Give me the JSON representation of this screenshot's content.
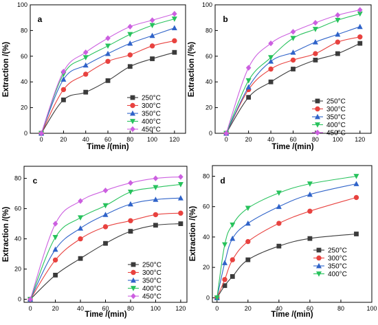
{
  "series_style": {
    "250°C": {
      "color": "#3b3b3b",
      "marker": "square"
    },
    "300°C": {
      "color": "#e8423f",
      "marker": "circle"
    },
    "350°C": {
      "color": "#2f63c9",
      "marker": "triangle-up"
    },
    "400°C": {
      "color": "#27c25c",
      "marker": "triangle-down"
    },
    "450°C": {
      "color": "#cc5fe0",
      "marker": "diamond"
    }
  },
  "chart_data": [
    {
      "type": "line",
      "panel_label": "a",
      "xlabel": "Time /(min)",
      "ylabel": "Extraction /(%)",
      "xlim": [
        -10,
        130
      ],
      "ylim": [
        0,
        100
      ],
      "xticks": [
        0,
        20,
        40,
        60,
        80,
        100,
        120
      ],
      "yticks": [
        0,
        20,
        40,
        60,
        80,
        100
      ],
      "legend_position": "lower-right",
      "x": [
        0,
        20,
        40,
        60,
        80,
        100,
        120
      ],
      "series": [
        {
          "name": "250°C",
          "values": [
            0,
            26,
            32,
            41,
            52,
            58,
            63
          ]
        },
        {
          "name": "300°C",
          "values": [
            0,
            34,
            46,
            56,
            61,
            68,
            72
          ]
        },
        {
          "name": "350°C",
          "values": [
            0,
            42,
            53,
            62,
            70,
            76,
            82
          ]
        },
        {
          "name": "400°C",
          "values": [
            0,
            46,
            59,
            68,
            77,
            84,
            89
          ]
        },
        {
          "name": "450°C",
          "values": [
            0,
            48,
            63,
            74,
            83,
            88,
            93
          ]
        }
      ]
    },
    {
      "type": "line",
      "panel_label": "b",
      "xlabel": "Time /(min)",
      "ylabel": "Extraction /(%)",
      "xlim": [
        -10,
        130
      ],
      "ylim": [
        0,
        100
      ],
      "xticks": [
        0,
        20,
        40,
        60,
        80,
        100,
        120
      ],
      "yticks": [
        0,
        20,
        40,
        60,
        80,
        100
      ],
      "legend_position": "lower-right",
      "x": [
        0,
        20,
        40,
        60,
        80,
        100,
        120
      ],
      "series": [
        {
          "name": "250°C",
          "values": [
            0,
            28,
            40,
            50,
            57,
            62,
            70
          ]
        },
        {
          "name": "300°C",
          "values": [
            0,
            34,
            50,
            57,
            62,
            71,
            75
          ]
        },
        {
          "name": "350°C",
          "values": [
            0,
            36,
            56,
            63,
            71,
            77,
            83
          ]
        },
        {
          "name": "400°C",
          "values": [
            0,
            41,
            59,
            74,
            81,
            88,
            93
          ]
        },
        {
          "name": "450°C",
          "values": [
            0,
            51,
            70,
            79,
            86,
            92,
            96
          ]
        }
      ]
    },
    {
      "type": "line",
      "panel_label": "c",
      "xlabel": "Time /(min)",
      "ylabel": "Extraction /(%)",
      "xlim": [
        -5,
        125
      ],
      "ylim": [
        -2,
        88
      ],
      "xticks": [
        0,
        20,
        40,
        60,
        80,
        100,
        120
      ],
      "yticks": [
        0,
        20,
        40,
        60,
        80
      ],
      "legend_position": "lower-right",
      "x": [
        0,
        20,
        40,
        60,
        80,
        100,
        120
      ],
      "series": [
        {
          "name": "250°C",
          "values": [
            0,
            16,
            27,
            37,
            45,
            49,
            50
          ]
        },
        {
          "name": "300°C",
          "values": [
            0,
            26,
            40,
            48,
            52,
            56,
            57
          ]
        },
        {
          "name": "350°C",
          "values": [
            0,
            33,
            47,
            56,
            63,
            66,
            67
          ]
        },
        {
          "name": "400°C",
          "values": [
            0,
            41,
            54,
            62,
            71,
            74,
            76
          ]
        },
        {
          "name": "450°C",
          "values": [
            0,
            50,
            65,
            72,
            77,
            80,
            81
          ]
        }
      ]
    },
    {
      "type": "line",
      "panel_label": "d",
      "xlabel": "Time /(min)",
      "ylabel": "Extraction /(%)",
      "xlim": [
        -3,
        100
      ],
      "ylim": [
        -3,
        87
      ],
      "xticks": [
        0,
        20,
        40,
        60,
        80,
        100
      ],
      "yticks": [
        0,
        20,
        40,
        60,
        80
      ],
      "legend_position": "lower-right",
      "x": [
        0,
        5,
        10,
        20,
        40,
        60,
        90
      ],
      "series": [
        {
          "name": "250°C",
          "values": [
            0,
            8,
            14,
            25,
            34,
            39,
            42
          ]
        },
        {
          "name": "300°C",
          "values": [
            0,
            12,
            25,
            37,
            49,
            57,
            66
          ]
        },
        {
          "name": "350°C",
          "values": [
            0,
            23,
            39,
            49,
            60,
            68,
            75
          ]
        },
        {
          "name": "400°C",
          "values": [
            0,
            35,
            48,
            59,
            69,
            75,
            80
          ]
        }
      ]
    }
  ]
}
